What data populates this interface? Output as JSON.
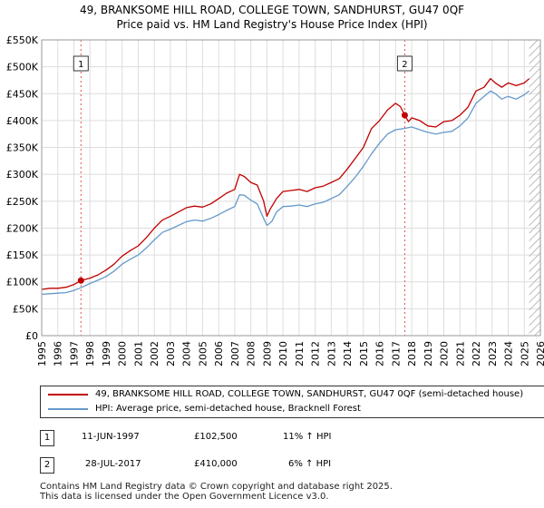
{
  "title_line1": "49, BRANKSOME HILL ROAD, COLLEGE TOWN, SANDHURST, GU47 0QF",
  "title_line2": "Price paid vs. HM Land Registry's House Price Index (HPI)",
  "colors": {
    "property": "#c00000",
    "hpi": "#6699cc",
    "marker_line": "#e05050",
    "hatch": "#bbbbbb"
  },
  "chart_data": {
    "type": "line",
    "xlim": [
      1995,
      2026
    ],
    "ylim": [
      0,
      550000
    ],
    "yticks": [
      0,
      50000,
      100000,
      150000,
      200000,
      250000,
      300000,
      350000,
      400000,
      450000,
      500000,
      550000
    ],
    "ytick_labels": [
      "£0",
      "£50K",
      "£100K",
      "£150K",
      "£200K",
      "£250K",
      "£300K",
      "£350K",
      "£400K",
      "£450K",
      "£500K",
      "£550K"
    ],
    "xticks": [
      "1995",
      "1996",
      "1997",
      "1998",
      "1999",
      "2000",
      "2001",
      "2002",
      "2003",
      "2004",
      "2005",
      "2006",
      "2007",
      "2008",
      "2009",
      "2010",
      "2011",
      "2012",
      "2013",
      "2014",
      "2015",
      "2016",
      "2017",
      "2018",
      "2019",
      "2020",
      "2021",
      "2022",
      "2023",
      "2024",
      "2025",
      "2026"
    ],
    "future_hatch_from": 2025.3,
    "series": [
      {
        "name": "49, BRANKSOME HILL ROAD, COLLEGE TOWN, SANDHURST, GU47 0QF (semi-detached house)",
        "x": [
          1995,
          1995.5,
          1996,
          1996.5,
          1997,
          1997.44,
          1998,
          1998.5,
          1999,
          1999.5,
          2000,
          2000.5,
          2001,
          2001.5,
          2002,
          2002.5,
          2003,
          2003.5,
          2004,
          2004.5,
          2005,
          2005.5,
          2006,
          2006.5,
          2007,
          2007.3,
          2007.6,
          2008,
          2008.4,
          2008.8,
          2009,
          2009.2,
          2009.6,
          2010,
          2010.5,
          2011,
          2011.5,
          2012,
          2012.5,
          2013,
          2013.5,
          2014,
          2014.5,
          2015,
          2015.5,
          2016,
          2016.5,
          2017,
          2017.3,
          2017.57,
          2017.8,
          2018,
          2018.5,
          2019,
          2019.5,
          2020,
          2020.5,
          2021,
          2021.5,
          2022,
          2022.5,
          2022.9,
          2023.2,
          2023.6,
          2024,
          2024.5,
          2025,
          2025.3
        ],
        "values": [
          86000,
          88000,
          88000,
          90000,
          95000,
          102500,
          107000,
          113000,
          122000,
          133000,
          148000,
          158000,
          167000,
          182000,
          200000,
          215000,
          222000,
          230000,
          238000,
          241000,
          239000,
          245000,
          255000,
          265000,
          272000,
          300000,
          296000,
          285000,
          280000,
          250000,
          222000,
          235000,
          255000,
          268000,
          270000,
          272000,
          268000,
          275000,
          278000,
          285000,
          292000,
          310000,
          330000,
          350000,
          385000,
          400000,
          420000,
          432000,
          426000,
          410000,
          398000,
          405000,
          400000,
          390000,
          388000,
          398000,
          400000,
          410000,
          425000,
          455000,
          462000,
          478000,
          470000,
          462000,
          470000,
          465000,
          470000,
          478000
        ]
      },
      {
        "name": "HPI: Average price, semi-detached house, Bracknell Forest",
        "x": [
          1995,
          1995.5,
          1996,
          1996.5,
          1997,
          1997.5,
          1998,
          1998.5,
          1999,
          1999.5,
          2000,
          2000.5,
          2001,
          2001.5,
          2002,
          2002.5,
          2003,
          2003.5,
          2004,
          2004.5,
          2005,
          2005.5,
          2006,
          2006.5,
          2007,
          2007.3,
          2007.6,
          2008,
          2008.4,
          2008.8,
          2009,
          2009.3,
          2009.6,
          2010,
          2010.5,
          2011,
          2011.5,
          2012,
          2012.5,
          2013,
          2013.5,
          2014,
          2014.5,
          2015,
          2015.5,
          2016,
          2016.5,
          2017,
          2017.5,
          2018,
          2018.5,
          2019,
          2019.5,
          2020,
          2020.5,
          2021,
          2021.5,
          2022,
          2022.5,
          2022.9,
          2023.2,
          2023.6,
          2024,
          2024.5,
          2025,
          2025.3
        ],
        "values": [
          77000,
          78000,
          79000,
          80000,
          84000,
          90000,
          97000,
          103000,
          110000,
          120000,
          133000,
          142000,
          150000,
          163000,
          178000,
          192000,
          198000,
          205000,
          212000,
          215000,
          213000,
          218000,
          225000,
          233000,
          240000,
          262000,
          261000,
          252000,
          245000,
          218000,
          205000,
          212000,
          230000,
          240000,
          241000,
          243000,
          240000,
          245000,
          248000,
          255000,
          262000,
          278000,
          295000,
          315000,
          338000,
          358000,
          375000,
          383000,
          385000,
          388000,
          383000,
          378000,
          375000,
          378000,
          380000,
          390000,
          405000,
          432000,
          445000,
          455000,
          450000,
          440000,
          445000,
          440000,
          448000,
          455000
        ]
      }
    ],
    "sales": [
      {
        "label": "1",
        "x": 1997.44,
        "value": 102500
      },
      {
        "label": "2",
        "x": 2017.57,
        "value": 410000
      }
    ]
  },
  "legend": [
    {
      "label": "49, BRANKSOME HILL ROAD, COLLEGE TOWN, SANDHURST, GU47 0QF (semi-detached house)"
    },
    {
      "label": "HPI: Average price, semi-detached house, Bracknell Forest"
    }
  ],
  "sales_table": [
    {
      "num": "1",
      "date": "11-JUN-1997",
      "price": "£102,500",
      "hpi": "11% ↑ HPI"
    },
    {
      "num": "2",
      "date": "28-JUL-2017",
      "price": "£410,000",
      "hpi": "6% ↑ HPI"
    }
  ],
  "footer_line1": "Contains HM Land Registry data © Crown copyright and database right 2025.",
  "footer_line2": "This data is licensed under the Open Government Licence v3.0."
}
